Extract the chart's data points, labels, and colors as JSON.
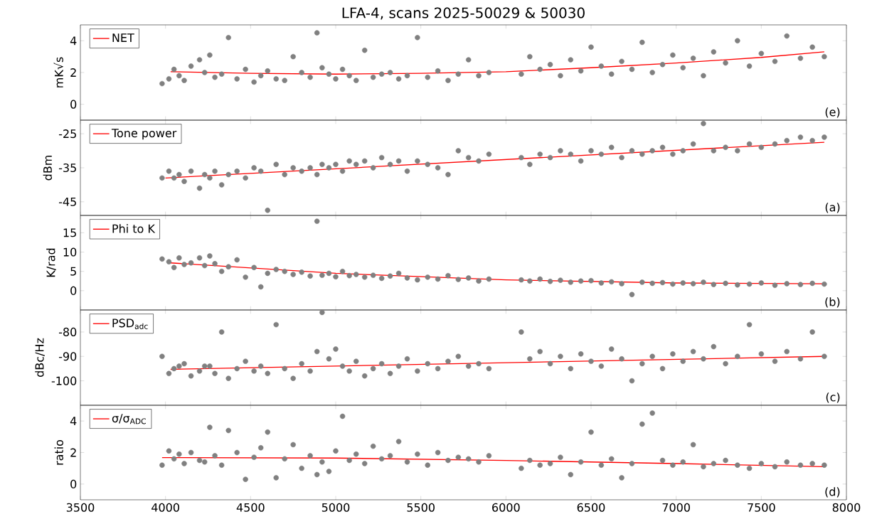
{
  "chart_data": [
    {
      "type": "scatter",
      "title": "LFA-4, scans 2025-50029 & 50030",
      "ylabel": "mK√s",
      "xlim": [
        3500,
        8000
      ],
      "xticks": [
        3500,
        4000,
        4500,
        5000,
        5500,
        6000,
        6500,
        7000,
        7500,
        8000
      ],
      "ylim": [
        -1,
        5
      ],
      "yticks": [
        0,
        2,
        4
      ],
      "tick_labels": "y",
      "legend": "top left",
      "annotations": [
        "(e)"
      ],
      "x": [
        3980,
        4020,
        4050,
        4080,
        4110,
        4150,
        4200,
        4230,
        4260,
        4290,
        4330,
        4370,
        4420,
        4470,
        4520,
        4560,
        4600,
        4650,
        4700,
        4750,
        4800,
        4850,
        4890,
        4920,
        4960,
        5000,
        5040,
        5080,
        5120,
        5170,
        5220,
        5270,
        5320,
        5370,
        5420,
        5480,
        5540,
        5600,
        5660,
        5720,
        5780,
        5840,
        5900,
        6090,
        6140,
        6200,
        6260,
        6320,
        6380,
        6440,
        6500,
        6560,
        6620,
        6680,
        6740,
        6800,
        6860,
        6920,
        6980,
        7040,
        7100,
        7160,
        7220,
        7290,
        7360,
        7430,
        7500,
        7580,
        7650,
        7730,
        7800,
        7870
      ],
      "series": [
        {
          "color": "#808080",
          "marker": "circle",
          "values": [
            1.3,
            1.6,
            2.2,
            1.8,
            1.5,
            2.4,
            2.8,
            2.0,
            3.1,
            1.7,
            1.9,
            4.2,
            1.6,
            2.2,
            1.4,
            1.8,
            2.1,
            1.6,
            1.5,
            3.0,
            2.0,
            1.7,
            4.5,
            2.3,
            1.9,
            1.6,
            2.2,
            1.8,
            1.5,
            3.4,
            1.7,
            1.9,
            2.0,
            1.6,
            1.8,
            4.2,
            1.7,
            2.1,
            1.5,
            1.9,
            2.8,
            1.8,
            2.0,
            1.9,
            3.0,
            2.2,
            2.5,
            1.8,
            2.8,
            2.1,
            3.6,
            2.4,
            1.9,
            2.7,
            2.2,
            3.9,
            2.0,
            2.5,
            3.1,
            2.3,
            2.9,
            1.8,
            3.3,
            2.6,
            4.0,
            2.4,
            3.2,
            2.7,
            4.3,
            2.9,
            3.6,
            3.0
          ]
        },
        {
          "type": "line",
          "name": "NET",
          "color": "#ff0000",
          "marker": "none",
          "x": [
            4030,
            4500,
            5000,
            5500,
            6000,
            6500,
            7000,
            7500,
            7870
          ],
          "values": [
            2.05,
            1.95,
            1.9,
            1.95,
            2.05,
            2.3,
            2.6,
            2.95,
            3.3
          ]
        }
      ]
    },
    {
      "type": "scatter",
      "ylabel": "dBm",
      "xlim": [
        3500,
        8000
      ],
      "xticks": [
        3500,
        4000,
        4500,
        5000,
        5500,
        6000,
        6500,
        7000,
        7500,
        8000
      ],
      "ylim": [
        -49,
        -21
      ],
      "yticks": [
        -45,
        -35,
        -25
      ],
      "tick_labels": "y",
      "legend": "top left",
      "annotations": [
        "(a)"
      ],
      "x": [
        3980,
        4020,
        4050,
        4080,
        4110,
        4150,
        4200,
        4230,
        4260,
        4290,
        4330,
        4370,
        4420,
        4470,
        4520,
        4560,
        4600,
        4650,
        4700,
        4750,
        4800,
        4850,
        4890,
        4920,
        4960,
        5000,
        5040,
        5080,
        5120,
        5170,
        5220,
        5270,
        5320,
        5370,
        5420,
        5480,
        5540,
        5600,
        5660,
        5720,
        5780,
        5840,
        5900,
        6090,
        6140,
        6200,
        6260,
        6320,
        6380,
        6440,
        6500,
        6560,
        6620,
        6680,
        6740,
        6800,
        6860,
        6920,
        6980,
        7040,
        7100,
        7160,
        7220,
        7290,
        7360,
        7430,
        7500,
        7580,
        7650,
        7730,
        7800,
        7870
      ],
      "series": [
        {
          "color": "#808080",
          "marker": "circle",
          "values": [
            -38,
            -36,
            -38,
            -37,
            -39,
            -36,
            -41,
            -37,
            -38,
            -36,
            -40,
            -37,
            -36,
            -38,
            -35,
            -36,
            -47.5,
            -34,
            -37,
            -35,
            -36,
            -35,
            -37,
            -34,
            -35,
            -34,
            -36,
            -33,
            -34,
            -33,
            -35,
            -32,
            -34,
            -33,
            -36,
            -33,
            -34,
            -35,
            -37,
            -30,
            -32,
            -33,
            -31,
            -32,
            -34,
            -31,
            -32,
            -30,
            -31,
            -33,
            -30,
            -31,
            -29,
            -32,
            -30,
            -31,
            -30,
            -29,
            -31,
            -30,
            -28,
            -22,
            -30,
            -29,
            -30,
            -28,
            -29,
            -28,
            -27,
            -26,
            -27,
            -26
          ]
        },
        {
          "type": "line",
          "name": "Tone power",
          "color": "#ff0000",
          "marker": "none",
          "x": [
            4000,
            7870
          ],
          "values": [
            -38,
            -27.5
          ]
        }
      ]
    },
    {
      "type": "scatter",
      "ylabel": "K/rad",
      "xlim": [
        3500,
        8000
      ],
      "xticks": [
        3500,
        4000,
        4500,
        5000,
        5500,
        6000,
        6500,
        7000,
        7500,
        8000
      ],
      "ylim": [
        -5,
        19.5
      ],
      "yticks": [
        0,
        5,
        10,
        15
      ],
      "tick_labels": "y",
      "legend": "top left",
      "annotations": [
        "(b)"
      ],
      "x": [
        3980,
        4020,
        4050,
        4080,
        4110,
        4150,
        4200,
        4230,
        4260,
        4290,
        4330,
        4370,
        4420,
        4470,
        4520,
        4560,
        4600,
        4650,
        4700,
        4750,
        4800,
        4850,
        4890,
        4920,
        4960,
        5000,
        5040,
        5080,
        5120,
        5170,
        5220,
        5270,
        5320,
        5370,
        5420,
        5480,
        5540,
        5600,
        5660,
        5720,
        5780,
        5840,
        5900,
        6090,
        6140,
        6200,
        6260,
        6320,
        6380,
        6440,
        6500,
        6560,
        6620,
        6680,
        6740,
        6800,
        6860,
        6920,
        6980,
        7040,
        7100,
        7160,
        7220,
        7290,
        7360,
        7430,
        7500,
        7580,
        7650,
        7730,
        7800,
        7870
      ],
      "series": [
        {
          "color": "#808080",
          "marker": "circle",
          "values": [
            8.2,
            7.5,
            6.0,
            8.5,
            6.8,
            7.2,
            8.5,
            6.5,
            9.0,
            7.0,
            5.0,
            6.2,
            8.0,
            3.5,
            6.0,
            1.0,
            4.5,
            5.5,
            5.0,
            4.2,
            4.8,
            3.8,
            18,
            4.0,
            4.5,
            3.6,
            5.0,
            3.9,
            4.2,
            3.5,
            4.0,
            3.2,
            3.8,
            4.5,
            3.3,
            2.8,
            3.5,
            3.0,
            3.9,
            2.9,
            3.3,
            2.5,
            3.0,
            2.8,
            2.5,
            3.0,
            2.4,
            2.7,
            2.2,
            2.5,
            2.6,
            2.0,
            2.3,
            1.8,
            -1.0,
            2.2,
            1.9,
            2.1,
            1.7,
            2.0,
            1.8,
            2.2,
            1.6,
            1.9,
            1.5,
            1.7,
            2.0,
            1.4,
            1.8,
            1.6,
            1.9,
            1.7
          ]
        },
        {
          "type": "line",
          "name": "Phi to K",
          "color": "#ff0000",
          "marker": "none",
          "x": [
            4030,
            5000,
            6000,
            7000,
            7870
          ],
          "values": [
            7.2,
            4.5,
            2.8,
            2.0,
            1.8
          ]
        }
      ]
    },
    {
      "type": "scatter",
      "ylabel": "dBc/Hz",
      "xlim": [
        3500,
        8000
      ],
      "xticks": [
        3500,
        4000,
        4500,
        5000,
        5500,
        6000,
        6500,
        7000,
        7500,
        8000
      ],
      "ylim": [
        -110,
        -71
      ],
      "yticks": [
        -100,
        -90,
        -80
      ],
      "tick_labels": "y",
      "legend": "top left",
      "annotations": [
        "(c)"
      ],
      "x": [
        3980,
        4020,
        4050,
        4080,
        4110,
        4150,
        4200,
        4230,
        4260,
        4290,
        4330,
        4370,
        4420,
        4470,
        4520,
        4560,
        4600,
        4650,
        4700,
        4750,
        4800,
        4850,
        4890,
        4920,
        4960,
        5000,
        5040,
        5080,
        5120,
        5170,
        5220,
        5270,
        5320,
        5370,
        5420,
        5480,
        5540,
        5600,
        5660,
        5720,
        5780,
        5840,
        5900,
        6090,
        6140,
        6200,
        6260,
        6320,
        6380,
        6440,
        6500,
        6560,
        6620,
        6680,
        6740,
        6800,
        6860,
        6920,
        6980,
        7040,
        7100,
        7160,
        7220,
        7290,
        7360,
        7430,
        7500,
        7580,
        7650,
        7730,
        7800,
        7870
      ],
      "series": [
        {
          "color": "#808080",
          "marker": "circle",
          "values": [
            -90,
            -97,
            -95,
            -94,
            -93,
            -98,
            -96,
            -94,
            -94,
            -97,
            -80,
            -99,
            -95,
            -92,
            -96,
            -94,
            -97,
            -77,
            -95,
            -99,
            -93,
            -96,
            -88,
            -72,
            -91,
            -87,
            -94,
            -96,
            -92,
            -98,
            -95,
            -93,
            -97,
            -94,
            -91,
            -96,
            -93,
            -95,
            -92,
            -90,
            -94,
            -93,
            -95,
            -80,
            -91,
            -88,
            -93,
            -90,
            -95,
            -89,
            -92,
            -94,
            -87,
            -91,
            -100,
            -93,
            -90,
            -95,
            -89,
            -92,
            -88,
            -91,
            -86,
            -93,
            -90,
            -77,
            -89,
            -92,
            -88,
            -91,
            -80,
            -90
          ]
        },
        {
          "type": "line",
          "name": "PSD$_{adc}$",
          "color": "#ff0000",
          "marker": "none",
          "x": [
            4030,
            7870
          ],
          "values": [
            -95.3,
            -90
          ]
        }
      ]
    },
    {
      "type": "scatter",
      "ylabel": "ratio",
      "xlim": [
        3500,
        8000
      ],
      "xticks": [
        3500,
        4000,
        4500,
        5000,
        5500,
        6000,
        6500,
        7000,
        7500,
        8000
      ],
      "ylim": [
        -1,
        5
      ],
      "yticks": [
        0,
        2,
        4
      ],
      "legend": "top left",
      "annotations": [
        "(d)"
      ],
      "x": [
        3980,
        4020,
        4050,
        4080,
        4110,
        4150,
        4200,
        4230,
        4260,
        4290,
        4330,
        4370,
        4420,
        4470,
        4520,
        4560,
        4600,
        4650,
        4700,
        4750,
        4800,
        4850,
        4890,
        4920,
        4960,
        5000,
        5040,
        5080,
        5120,
        5170,
        5220,
        5270,
        5320,
        5370,
        5420,
        5480,
        5540,
        5600,
        5660,
        5720,
        5780,
        5840,
        5900,
        6090,
        6140,
        6200,
        6260,
        6320,
        6380,
        6440,
        6500,
        6560,
        6620,
        6680,
        6740,
        6800,
        6860,
        6920,
        6980,
        7040,
        7100,
        7160,
        7220,
        7290,
        7360,
        7430,
        7500,
        7580,
        7650,
        7730,
        7800,
        7870
      ],
      "series": [
        {
          "color": "#808080",
          "marker": "circle",
          "values": [
            1.2,
            2.1,
            1.6,
            1.9,
            1.3,
            2.0,
            1.5,
            1.4,
            3.6,
            1.8,
            1.2,
            3.4,
            2.0,
            0.3,
            1.7,
            2.3,
            3.3,
            0.4,
            1.6,
            2.5,
            1.0,
            1.8,
            0.6,
            1.4,
            0.8,
            2.1,
            4.3,
            1.5,
            1.9,
            1.3,
            2.4,
            1.6,
            1.8,
            2.7,
            1.4,
            1.9,
            1.2,
            2.0,
            1.5,
            1.7,
            1.6,
            1.4,
            1.8,
            1.0,
            1.5,
            1.2,
            1.3,
            1.7,
            0.6,
            1.4,
            3.3,
            1.2,
            1.6,
            0.4,
            1.3,
            3.8,
            4.5,
            1.5,
            1.2,
            1.4,
            2.5,
            1.1,
            1.3,
            1.5,
            1.2,
            1.0,
            1.3,
            1.1,
            1.4,
            1.2,
            1.3,
            1.2
          ]
        },
        {
          "type": "line",
          "name": "σ/σ$_{ADC}$",
          "color": "#ff0000",
          "marker": "none",
          "x": [
            3980,
            5000,
            6000,
            7000,
            7870
          ],
          "values": [
            1.68,
            1.65,
            1.5,
            1.3,
            1.1
          ]
        }
      ]
    }
  ]
}
